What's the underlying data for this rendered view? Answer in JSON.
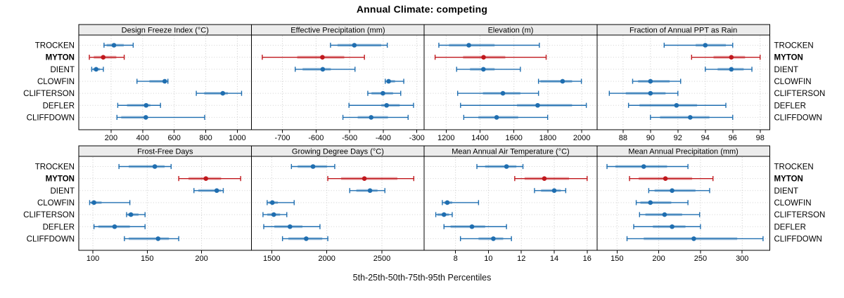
{
  "title": "Annual Climate: competing",
  "caption": "5th-25th-50th-75th-95th Percentiles",
  "stations": [
    "TROCKEN",
    "MYTON",
    "DIENT",
    "CLOWFIN",
    "CLIFTERSON",
    "DEFLER",
    "CLIFFDOWN"
  ],
  "highlight_station": "MYTON",
  "colors": {
    "blue": "#1f6eb0",
    "blue_band": "rgba(31,110,176,0.38)",
    "red": "#c0181d",
    "red_band": "rgba(192,24,29,0.38)",
    "grid": "#c9c9c9",
    "row_guide": "#d2d2d2",
    "strip_bg": "#ececec",
    "border": "#000000",
    "text": "#000000"
  },
  "chart_data": {
    "type": "dot-whisker percentile trellis (lattice style)",
    "layout": {
      "rows": 2,
      "cols": 4,
      "legend_position": "none",
      "grid": "dotted"
    },
    "percentiles": [
      5,
      25,
      50,
      75,
      95
    ],
    "stations": [
      "TROCKEN",
      "MYTON",
      "DIENT",
      "CLOWFIN",
      "CLIFTERSON",
      "DEFLER",
      "CLIFFDOWN"
    ],
    "highlight_station": "MYTON",
    "panels": [
      {
        "title": "Design Freeze Index (°C)",
        "row": 0,
        "col": 0,
        "xlim": [
          -5,
          1090
        ],
        "ticks": [
          200,
          400,
          600,
          800,
          1000
        ],
        "series": [
          [
            155,
            172,
            218,
            280,
            340
          ],
          [
            62,
            90,
            150,
            233,
            283
          ],
          [
            77,
            85,
            105,
            129,
            151
          ],
          [
            364,
            443,
            540,
            554,
            560
          ],
          [
            740,
            790,
            908,
            940,
            1027
          ],
          [
            242,
            301,
            422,
            449,
            513
          ],
          [
            237,
            264,
            420,
            433,
            793
          ]
        ]
      },
      {
        "title": "Effective Precipitation (mm)",
        "row": 0,
        "col": 1,
        "xlim": [
          -792,
          -278
        ],
        "ticks": [
          -700,
          -600,
          -500,
          -400,
          -300
        ],
        "series": [
          [
            -557,
            -536,
            -486,
            -406,
            -388
          ],
          [
            -760,
            -656,
            -581,
            -516,
            -456
          ],
          [
            -662,
            -640,
            -580,
            -556,
            -484
          ],
          [
            -394,
            -389,
            -384,
            -365,
            -339
          ],
          [
            -446,
            -435,
            -401,
            -371,
            -348
          ],
          [
            -502,
            -406,
            -390,
            -351,
            -310
          ],
          [
            -520,
            -476,
            -436,
            -386,
            -326
          ]
        ]
      },
      {
        "title": "Elevation (m)",
        "row": 0,
        "col": 2,
        "xlim": [
          1071,
          2090
        ],
        "ticks": [
          1200,
          1400,
          1600,
          1800,
          2000
        ],
        "series": [
          [
            1157,
            1217,
            1334,
            1486,
            1750
          ],
          [
            1135,
            1300,
            1421,
            1549,
            1790
          ],
          [
            1262,
            1341,
            1420,
            1486,
            1638
          ],
          [
            1745,
            1756,
            1887,
            1943,
            1998
          ],
          [
            1268,
            1417,
            1535,
            1638,
            1745
          ],
          [
            1285,
            1618,
            1740,
            1943,
            2027
          ],
          [
            1304,
            1390,
            1498,
            1625,
            1799
          ]
        ]
      },
      {
        "title": "Fraction of Annual PPT as Rain",
        "row": 0,
        "col": 3,
        "xlim": [
          86.1,
          98.7
        ],
        "ticks": [
          88,
          90,
          92,
          94,
          96,
          98
        ],
        "series": [
          [
            91.0,
            93.3,
            94.0,
            95.5,
            96.0
          ],
          [
            93.0,
            94.6,
            95.9,
            96.9,
            98.0
          ],
          [
            94.0,
            94.9,
            95.9,
            96.8,
            97.4
          ],
          [
            88.7,
            89.1,
            90.0,
            91.4,
            92.2
          ],
          [
            87.0,
            88.2,
            90.0,
            91.1,
            92.0
          ],
          [
            88.4,
            89.2,
            91.9,
            93.4,
            95.5
          ],
          [
            90.0,
            90.7,
            92.9,
            94.3,
            96.0
          ]
        ]
      },
      {
        "title": "Frost-Free Days",
        "row": 1,
        "col": 0,
        "xlim": [
          87,
          246
        ],
        "ticks": [
          100,
          150,
          200
        ],
        "series": [
          [
            124,
            133,
            157,
            166,
            172
          ],
          [
            179,
            188,
            204,
            218,
            236
          ],
          [
            193,
            197,
            214,
            218,
            220
          ],
          [
            97,
            98,
            101,
            108,
            134
          ],
          [
            131,
            132,
            135,
            142,
            148
          ],
          [
            101,
            105,
            120,
            134,
            148
          ],
          [
            129,
            133,
            160,
            170,
            179
          ]
        ]
      },
      {
        "title": "Growing Degree Days (°C)",
        "row": 1,
        "col": 1,
        "xlim": [
          1317,
          2884
        ],
        "ticks": [
          1500,
          2000,
          2500
        ],
        "series": [
          [
            1679,
            1736,
            1875,
            2000,
            2072
          ],
          [
            2009,
            2130,
            2341,
            2640,
            2789
          ],
          [
            2208,
            2268,
            2392,
            2460,
            2527
          ],
          [
            1459,
            1471,
            1506,
            1556,
            1704
          ],
          [
            1421,
            1460,
            1519,
            1576,
            1637
          ],
          [
            1428,
            1524,
            1666,
            1779,
            1938
          ],
          [
            1598,
            1651,
            1813,
            1959,
            2009
          ]
        ]
      },
      {
        "title": "Mean Annual Air Temperature (°C)",
        "row": 1,
        "col": 2,
        "xlim": [
          6.1,
          16.6
        ],
        "ticks": [
          8,
          10,
          12,
          14,
          16
        ],
        "series": [
          [
            9.3,
            9.8,
            11.1,
            11.7,
            12.1
          ],
          [
            11.6,
            12.2,
            13.4,
            14.9,
            16.0
          ],
          [
            12.8,
            13.2,
            14.0,
            14.4,
            14.7
          ],
          [
            7.2,
            7.3,
            7.5,
            7.8,
            9.4
          ],
          [
            6.8,
            6.9,
            7.3,
            7.6,
            7.8
          ],
          [
            7.3,
            7.7,
            9.0,
            9.8,
            11.1
          ],
          [
            8.3,
            9.4,
            10.3,
            10.9,
            11.4
          ]
        ]
      },
      {
        "title": "Mean Annual Precipitation (mm)",
        "row": 1,
        "col": 3,
        "xlim": [
          126,
          333
        ],
        "ticks": [
          150,
          200,
          250,
          300
        ],
        "series": [
          [
            138,
            148,
            182,
            210,
            235
          ],
          [
            165,
            176,
            208,
            240,
            265
          ],
          [
            188,
            195,
            216,
            244,
            261
          ],
          [
            173,
            178,
            190,
            215,
            235
          ],
          [
            177,
            184,
            207,
            228,
            249
          ],
          [
            170,
            193,
            216,
            232,
            250
          ],
          [
            162,
            182,
            242,
            294,
            325
          ]
        ]
      }
    ]
  }
}
